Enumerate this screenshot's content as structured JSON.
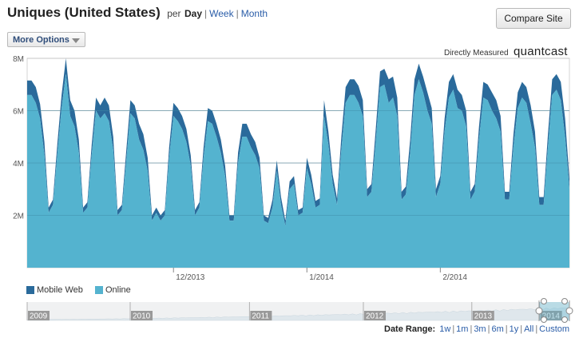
{
  "header": {
    "title": "Uniques (United States)",
    "per_label": "per",
    "periods": [
      "Day",
      "Week",
      "Month"
    ],
    "active_period": "Day",
    "compare_label": "Compare Site",
    "more_options_label": "More Options"
  },
  "attribution": {
    "measured": "Directly Measured",
    "brand": "quantcast"
  },
  "colors": {
    "mobile": "#2a6a9b",
    "online": "#54b3cf",
    "grid": "#c5c5c5",
    "navigator_bg": "#f0f1f2",
    "year_bg": "#9a9a9a"
  },
  "chart_data": {
    "type": "area",
    "stacked": true,
    "y_ticks": [
      "2M",
      "4M",
      "6M",
      "8M"
    ],
    "ylim": [
      0,
      8000000
    ],
    "x_ticks": [
      {
        "label": "12/2013",
        "index": 34
      },
      {
        "label": "1/2014",
        "index": 65
      },
      {
        "label": "2/2014",
        "index": 96
      }
    ],
    "grid": true,
    "legend_position": "bottom-left",
    "series": [
      {
        "name": "Online",
        "color": "#54b3cf",
        "values": [
          6.6,
          6.6,
          6.3,
          5.7,
          4.3,
          2.1,
          2.4,
          4.3,
          6.1,
          7.4,
          5.8,
          5.4,
          4.4,
          2.1,
          2.3,
          4.3,
          6.0,
          5.7,
          5.9,
          5.6,
          4.5,
          2.0,
          2.2,
          4.0,
          5.9,
          5.7,
          4.9,
          4.5,
          3.7,
          1.8,
          2.1,
          1.8,
          2.0,
          4.2,
          5.8,
          5.6,
          5.3,
          4.8,
          3.9,
          2.0,
          2.3,
          4.2,
          5.6,
          5.5,
          5.0,
          4.4,
          3.5,
          1.8,
          1.8,
          4.0,
          5.0,
          5.0,
          4.6,
          4.3,
          3.8,
          1.8,
          1.7,
          2.3,
          3.7,
          2.4,
          1.6,
          3.0,
          3.2,
          2.0,
          2.1,
          3.8,
          3.2,
          2.3,
          2.4,
          5.8,
          4.7,
          3.2,
          2.4,
          4.5,
          6.3,
          6.6,
          6.6,
          6.3,
          5.8,
          2.7,
          2.9,
          4.8,
          6.9,
          7.0,
          6.3,
          6.5,
          5.8,
          2.6,
          2.8,
          4.4,
          6.6,
          7.2,
          6.7,
          6.0,
          5.5,
          2.7,
          3.2,
          5.2,
          6.5,
          6.8,
          6.1,
          6.0,
          5.4,
          2.6,
          2.9,
          4.9,
          6.5,
          6.4,
          6.0,
          5.7,
          5.2,
          2.6,
          2.6,
          4.6,
          6.1,
          6.5,
          6.3,
          5.5,
          4.6,
          2.4,
          2.4,
          4.6,
          6.6,
          6.8,
          6.4,
          5.0,
          3.0
        ]
      },
      {
        "name": "Mobile Web",
        "color": "#2a6a9b",
        "values": [
          0.55,
          0.55,
          0.6,
          0.55,
          0.5,
          0.2,
          0.2,
          0.4,
          0.5,
          0.6,
          0.6,
          0.6,
          0.5,
          0.2,
          0.2,
          0.4,
          0.5,
          0.5,
          0.6,
          0.6,
          0.5,
          0.2,
          0.2,
          0.4,
          0.5,
          0.5,
          0.6,
          0.6,
          0.5,
          0.2,
          0.2,
          0.2,
          0.2,
          0.4,
          0.5,
          0.5,
          0.5,
          0.5,
          0.4,
          0.2,
          0.2,
          0.4,
          0.5,
          0.5,
          0.5,
          0.5,
          0.4,
          0.2,
          0.2,
          0.4,
          0.5,
          0.5,
          0.5,
          0.5,
          0.4,
          0.2,
          0.2,
          0.3,
          0.4,
          0.3,
          0.2,
          0.3,
          0.3,
          0.2,
          0.2,
          0.4,
          0.35,
          0.25,
          0.25,
          0.6,
          0.5,
          0.35,
          0.25,
          0.5,
          0.6,
          0.6,
          0.6,
          0.65,
          0.6,
          0.3,
          0.3,
          0.5,
          0.6,
          0.6,
          0.9,
          0.8,
          0.7,
          0.3,
          0.3,
          0.5,
          0.6,
          0.6,
          0.6,
          0.7,
          0.6,
          0.3,
          0.3,
          0.5,
          0.6,
          0.6,
          0.7,
          0.6,
          0.6,
          0.3,
          0.3,
          0.5,
          0.6,
          0.6,
          0.7,
          0.7,
          0.6,
          0.3,
          0.3,
          0.5,
          0.6,
          0.6,
          0.6,
          0.7,
          0.6,
          0.3,
          0.3,
          0.5,
          0.6,
          0.6,
          0.7,
          0.7,
          0.4
        ]
      }
    ]
  },
  "navigator": {
    "years": [
      "2009",
      "2010",
      "2011",
      "2012",
      "2013",
      "2014"
    ],
    "year_starts": [
      0.0,
      0.19,
      0.41,
      0.62,
      0.82,
      0.945
    ]
  },
  "date_range": {
    "label": "Date Range:",
    "options": [
      "1w",
      "1m",
      "3m",
      "6m",
      "1y",
      "All",
      "Custom"
    ]
  }
}
